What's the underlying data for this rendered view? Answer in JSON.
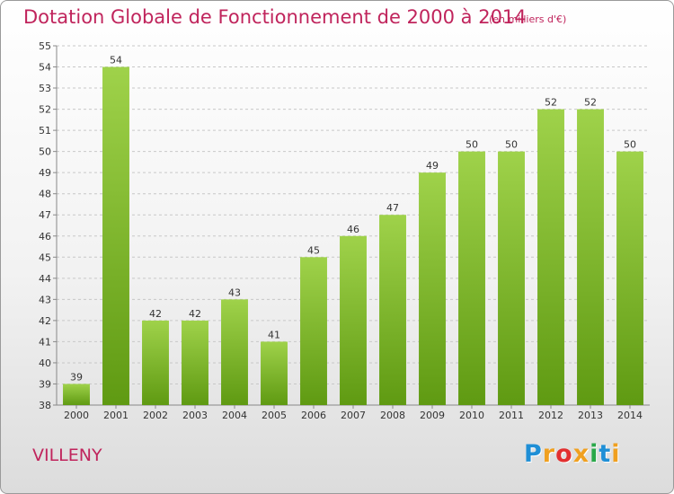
{
  "title": "Dotation Globale de Fonctionnement de 2000 à 2014",
  "subtitle": "(en milliers d'€)",
  "city": "VILLENY",
  "logo": {
    "text": "Proxiti",
    "letters": [
      {
        "ch": "P",
        "color": "#1f8fd6"
      },
      {
        "ch": "r",
        "color": "#f0a020"
      },
      {
        "ch": "o",
        "color": "#e23030"
      },
      {
        "ch": "x",
        "color": "#f0a020"
      },
      {
        "ch": "i",
        "color": "#2aa84a"
      },
      {
        "ch": "t",
        "color": "#1f8fd6"
      },
      {
        "ch": "i",
        "color": "#f0a020"
      }
    ]
  },
  "colors": {
    "bar_light": "#9fd24a",
    "bar_dark": "#5f9a12",
    "title": "#c0245c",
    "grid": "#c8c8c8"
  },
  "chart_data": {
    "type": "bar",
    "categories": [
      "2000",
      "2001",
      "2002",
      "2003",
      "2004",
      "2005",
      "2006",
      "2007",
      "2008",
      "2009",
      "2010",
      "2011",
      "2012",
      "2013",
      "2014"
    ],
    "values": [
      39,
      54,
      42,
      42,
      43,
      41,
      45,
      46,
      47,
      49,
      50,
      50,
      52,
      52,
      50
    ],
    "ylim": [
      38,
      55
    ],
    "yticks": [
      38,
      39,
      40,
      41,
      42,
      43,
      44,
      45,
      46,
      47,
      48,
      49,
      50,
      51,
      52,
      53,
      54,
      55
    ],
    "grid": true,
    "xlabel": "",
    "ylabel": ""
  }
}
